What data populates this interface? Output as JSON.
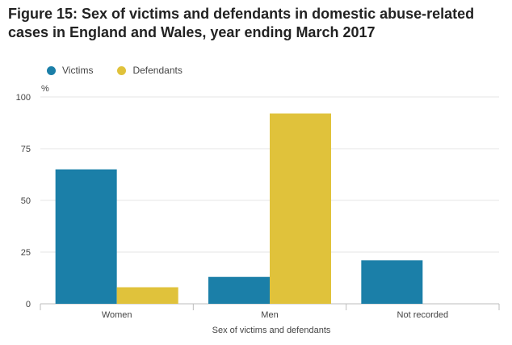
{
  "title": "Figure 15: Sex of victims and defendants in domestic abuse-related cases in England and Wales, year ending March 2017",
  "unit_label": "%",
  "colors": {
    "victims": "#1b7fa8",
    "defendants": "#e0c23b",
    "grid": "#e6e6e6",
    "axis": "#bdbdbd"
  },
  "chart_data": {
    "type": "bar",
    "categories": [
      "Women",
      "Men",
      "Not recorded"
    ],
    "series": [
      {
        "name": "Victims",
        "values": [
          65,
          13,
          21
        ]
      },
      {
        "name": "Defendants",
        "values": [
          8,
          92,
          0
        ]
      }
    ],
    "xlabel": "Sex of victims and defendants",
    "ylabel": "%",
    "ylim": [
      0,
      100
    ],
    "yticks": [
      "0",
      "25",
      "50",
      "75",
      "100"
    ],
    "grid": true,
    "legend": "top-left"
  }
}
